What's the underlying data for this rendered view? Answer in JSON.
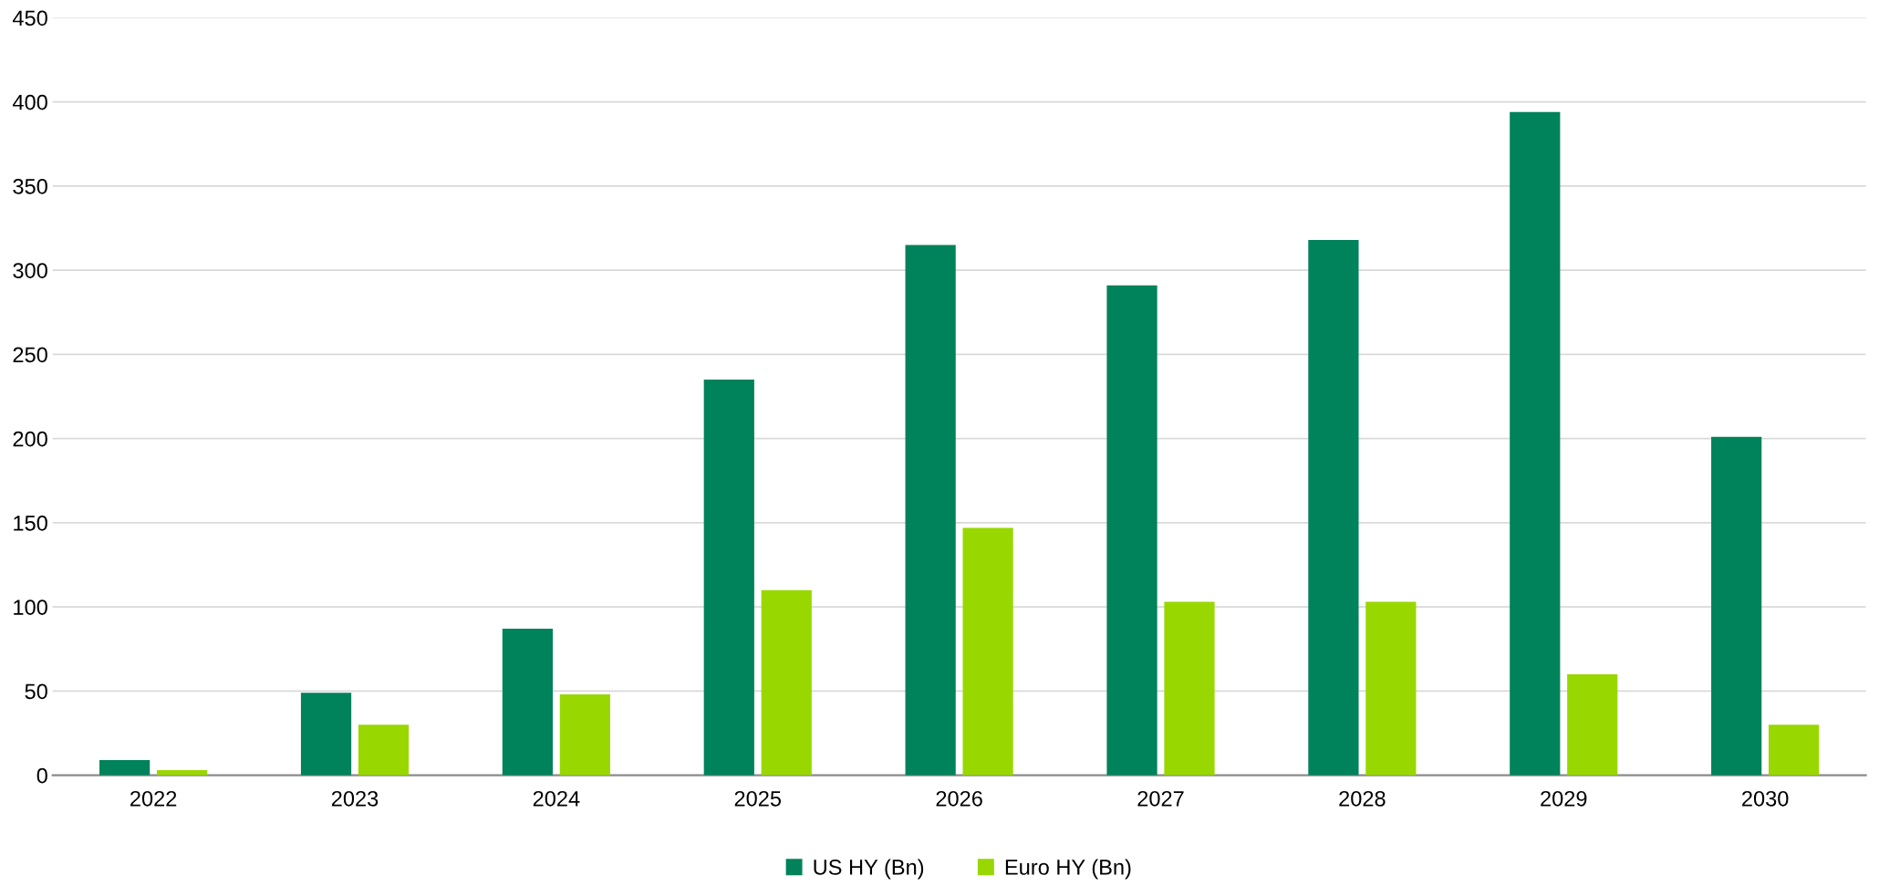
{
  "chart_data": {
    "type": "bar",
    "categories": [
      "2022",
      "2023",
      "2024",
      "2025",
      "2026",
      "2027",
      "2028",
      "2029",
      "2030"
    ],
    "series": [
      {
        "name": "US HY (Bn)",
        "color": "#00825a",
        "values": [
          9,
          49,
          87,
          235,
          315,
          291,
          318,
          394,
          201
        ]
      },
      {
        "name": "Euro HY (Bn)",
        "color": "#99d700",
        "values": [
          3,
          30,
          48,
          110,
          147,
          103,
          103,
          60,
          30
        ]
      }
    ],
    "ylim": [
      0,
      450
    ],
    "yticks": [
      0,
      50,
      100,
      150,
      200,
      250,
      300,
      350,
      400,
      450
    ],
    "grid": "y",
    "legend": "bottom"
  }
}
